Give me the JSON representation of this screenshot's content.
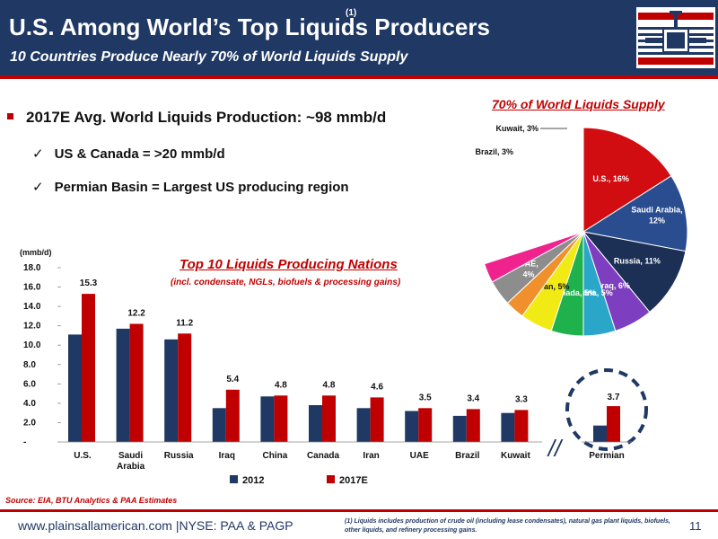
{
  "header": {
    "title": "U.S. Among World’s Top Liquids Producers",
    "title_superscript": "(1)",
    "subtitle": "10 Countries Produce Nearly 70% of World Liquids Supply",
    "logo_icon": "valve-logo-icon"
  },
  "bullets": {
    "main": "2017E Avg. World Liquids Production: ~98 mmb/d",
    "check_mark": "✓",
    "sub": [
      "US & Canada =  >20 mmb/d",
      "Permian Basin = Largest US producing region"
    ]
  },
  "colors": {
    "navy": "#1f3864",
    "red": "#c00000",
    "series_2012": "#1f3864",
    "series_2017": "#c00000"
  },
  "chart_data": [
    {
      "type": "pie",
      "title": "70% of World Liquids Supply",
      "slices": [
        {
          "label": "U.S., 16%",
          "value": 16,
          "color": "#d10d12"
        },
        {
          "label": "Saudi Arabia, 12%",
          "value": 12,
          "color": "#2a4d8f"
        },
        {
          "label": "Russia, 11%",
          "value": 11,
          "color": "#1c2f55"
        },
        {
          "label": "Iraq, 6%",
          "value": 6,
          "color": "#7d3fbf"
        },
        {
          "label": "China, 5%",
          "value": 5,
          "color": "#2aa7c8"
        },
        {
          "label": "Canada, 5%",
          "value": 5,
          "color": "#1fb14c"
        },
        {
          "label": "Iran, 5%",
          "value": 5,
          "color": "#f2ea14"
        },
        {
          "label": "Brazil, 3%",
          "value": 3,
          "color": "#f0902c"
        },
        {
          "label": "UAE, 4%",
          "value": 4,
          "color": "#8d8d8d"
        },
        {
          "label": "Kuwait, 3%",
          "value": 3,
          "color": "#f0228e"
        },
        {
          "label": "",
          "value": 30,
          "color": "#ffffff"
        }
      ]
    },
    {
      "type": "bar",
      "title": "Top 10 Liquids Producing Nations",
      "subtitle": "(incl. condensate, NGLs, biofuels & processing gains)",
      "ylabel": "(mmb/d)",
      "ylim": [
        0,
        18
      ],
      "yticks": [
        "-",
        "2.0",
        "4.0",
        "6.0",
        "8.0",
        "10.0",
        "12.0",
        "14.0",
        "16.0",
        "18.0"
      ],
      "categories": [
        "U.S.",
        "Saudi Arabia",
        "Russia",
        "Iraq",
        "China",
        "Canada",
        "Iran",
        "UAE",
        "Brazil",
        "Kuwait"
      ],
      "series": [
        {
          "name": "2012",
          "values": [
            11.1,
            11.7,
            10.6,
            3.5,
            4.7,
            3.8,
            3.5,
            3.2,
            2.7,
            3.0
          ]
        },
        {
          "name": "2017E",
          "values": [
            15.3,
            12.2,
            11.2,
            5.4,
            4.8,
            4.8,
            4.6,
            3.5,
            3.4,
            3.3
          ]
        }
      ],
      "data_labels": [
        "15.3",
        "12.2",
        "11.2",
        "5.4",
        "4.8",
        "4.8",
        "4.6",
        "3.5",
        "3.4",
        "3.3"
      ],
      "inset": {
        "category": "Permian",
        "values": [
          1.7,
          3.7
        ],
        "label": "3.7",
        "break_marker": "//"
      },
      "legend_position": "bottom"
    }
  ],
  "source": "Source: EIA, BTU Analytics & PAA Estimates",
  "footer": {
    "url": "www.plainsallamerican.com |NYSE: PAA & PAGP",
    "footnote": "(1) Liquids includes production of crude oil (including lease condensates), natural gas plant liquids, biofuels, other liquids, and refinery processing gains.",
    "page_number": "11"
  }
}
